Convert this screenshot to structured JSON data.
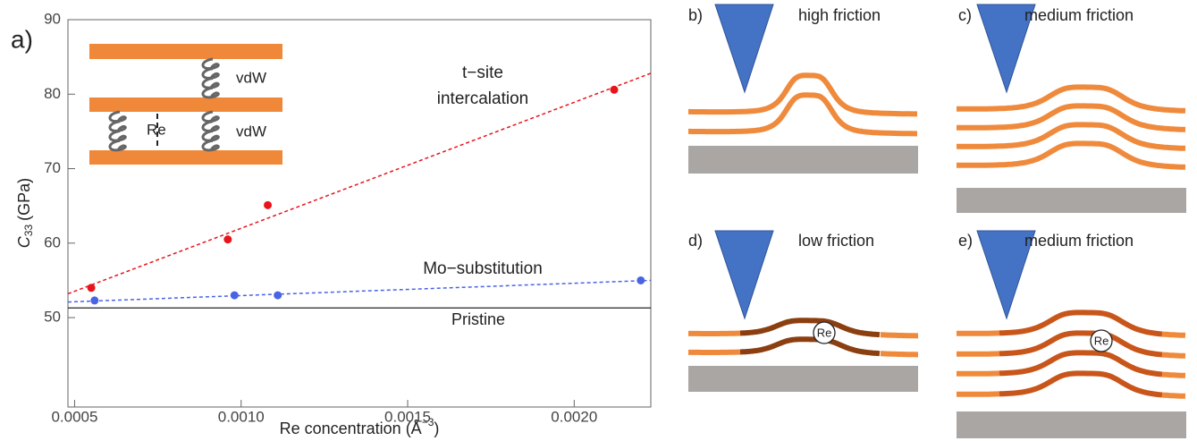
{
  "chart_data": {
    "type": "scatter",
    "panel_label": "a)",
    "xlabel": {
      "text": "Re concentration (Å",
      "superscript": "−3",
      "close": ")"
    },
    "ylabel": {
      "symbol": "C",
      "subscript": "33",
      "unit": "(GPa)"
    },
    "xlim": [
      0.00048,
      0.00223
    ],
    "ylim": [
      38,
      90
    ],
    "xticks": [
      0.0005,
      {
        "value": 0.001,
        "label": "0.0010"
      },
      0.0015,
      {
        "value": 0.002,
        "label": "0.0020"
      }
    ],
    "yticks": [
      50,
      60,
      70,
      80,
      90
    ],
    "series": [
      {
        "label_lines": [
          "t−site",
          "intercalation"
        ],
        "color": "#e8141c",
        "x": [
          0.00055,
          0.00096,
          0.00108,
          0.00212
        ],
        "values": [
          54.0,
          60.5,
          65.1,
          80.6
        ],
        "fit": {
          "x": [
            0.00048,
            0.00223
          ],
          "values": [
            53.2,
            82.8
          ]
        }
      },
      {
        "label_lines": [
          "Mo−substitution"
        ],
        "color": "#4a63e6",
        "x": [
          0.00056,
          0.00098,
          0.00111,
          0.0022
        ],
        "values": [
          52.3,
          53.0,
          53.0,
          55.0
        ],
        "fit": {
          "x": [
            0.00048,
            0.00223
          ],
          "values": [
            52.1,
            55.0
          ]
        }
      }
    ],
    "reference_line": {
      "label": "Pristine",
      "value": 51.3
    },
    "inset": {
      "labels": [
        "vdW",
        "vdW",
        "Re"
      ]
    }
  },
  "panels": [
    {
      "label": "b)",
      "title": "high friction"
    },
    {
      "label": "c)",
      "title": "medium friction"
    },
    {
      "label": "d)",
      "title": "low friction",
      "marker": "Re"
    },
    {
      "label": "e)",
      "title": "medium friction",
      "marker": "Re"
    }
  ]
}
